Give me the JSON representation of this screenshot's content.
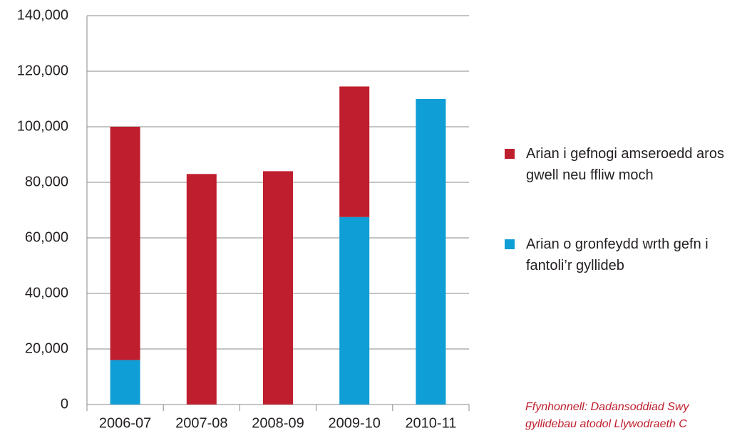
{
  "chart_data": {
    "type": "stacked-bar",
    "categories": [
      "2006-07",
      "2007-08",
      "2008-09",
      "2009-10",
      "2010-11"
    ],
    "series": [
      {
        "name": "Arian o gronfeydd wrth gefn i fantoli’r gyllideb",
        "color": "#0f9ed5",
        "values": [
          16000,
          0,
          0,
          67500,
          110000
        ]
      },
      {
        "name": "Arian i gefnogi amseroedd aros gwell neu ffliw moch",
        "color": "#be1e2d",
        "values": [
          84000,
          83000,
          84000,
          47000,
          0
        ]
      }
    ],
    "ylim": [
      0,
      140000
    ],
    "yticks": [
      {
        "value": 0,
        "label": "0"
      },
      {
        "value": 20000,
        "label": "20,000"
      },
      {
        "value": 40000,
        "label": "40,000"
      },
      {
        "value": 60000,
        "label": "60,000"
      },
      {
        "value": 80000,
        "label": "80,000"
      },
      {
        "value": 100000,
        "label": "100,000"
      },
      {
        "value": 120000,
        "label": "120,000"
      },
      {
        "value": 140000,
        "label": "140,000"
      }
    ],
    "grid": true,
    "legend": "right",
    "source": [
      "Ffynhonnell: Dadansoddiad Swy",
      "gyllidebau atodol Llywodraeth C"
    ]
  }
}
